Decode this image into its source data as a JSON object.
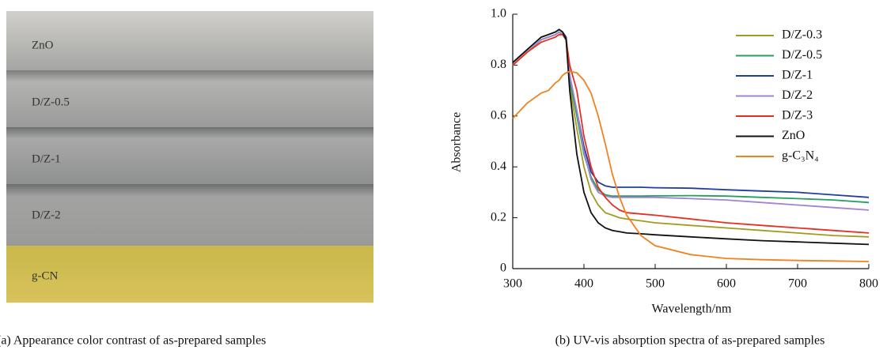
{
  "photo": {
    "labels": [
      "ZnO",
      "D/Z-0.5",
      "D/Z-1",
      "D/Z-2",
      "g-CN"
    ],
    "caption": "(a) Appearance color contrast of as-prepared samples"
  },
  "chart_data": {
    "type": "line",
    "caption": "(b) UV-vis absorption spectra of as-prepared samples",
    "x_label": "Wavelength/nm",
    "y_label": "Absorbance",
    "x": [
      300,
      320,
      340,
      350,
      360,
      365,
      370,
      375,
      380,
      390,
      400,
      410,
      420,
      430,
      440,
      450,
      460,
      480,
      500,
      550,
      600,
      650,
      700,
      750,
      800
    ],
    "series": [
      {
        "name": "D/Z-0.3",
        "color": "#a39b1e",
        "values": [
          0.8,
          0.85,
          0.9,
          0.91,
          0.92,
          0.93,
          0.92,
          0.9,
          0.72,
          0.55,
          0.4,
          0.3,
          0.25,
          0.22,
          0.21,
          0.2,
          0.195,
          0.188,
          0.18,
          0.17,
          0.16,
          0.15,
          0.14,
          0.13,
          0.125
        ]
      },
      {
        "name": "D/Z-0.5",
        "color": "#24a05e",
        "values": [
          0.8,
          0.85,
          0.9,
          0.91,
          0.92,
          0.93,
          0.92,
          0.9,
          0.74,
          0.6,
          0.45,
          0.36,
          0.31,
          0.29,
          0.285,
          0.285,
          0.285,
          0.285,
          0.286,
          0.287,
          0.285,
          0.28,
          0.275,
          0.27,
          0.26
        ]
      },
      {
        "name": "D/Z-1",
        "color": "#1f3f9e",
        "values": [
          0.81,
          0.86,
          0.91,
          0.92,
          0.93,
          0.94,
          0.93,
          0.91,
          0.76,
          0.62,
          0.48,
          0.38,
          0.34,
          0.325,
          0.32,
          0.32,
          0.32,
          0.32,
          0.318,
          0.316,
          0.31,
          0.305,
          0.3,
          0.29,
          0.28
        ]
      },
      {
        "name": "D/Z-2",
        "color": "#a283d2",
        "values": [
          0.8,
          0.85,
          0.9,
          0.91,
          0.92,
          0.93,
          0.92,
          0.9,
          0.76,
          0.62,
          0.46,
          0.35,
          0.3,
          0.285,
          0.28,
          0.28,
          0.28,
          0.28,
          0.28,
          0.275,
          0.27,
          0.26,
          0.25,
          0.24,
          0.23
        ]
      },
      {
        "name": "D/Z-3",
        "color": "#e6301f",
        "values": [
          0.8,
          0.85,
          0.89,
          0.9,
          0.91,
          0.92,
          0.92,
          0.9,
          0.8,
          0.7,
          0.52,
          0.4,
          0.32,
          0.28,
          0.25,
          0.23,
          0.22,
          0.215,
          0.21,
          0.195,
          0.18,
          0.17,
          0.16,
          0.15,
          0.14
        ]
      },
      {
        "name": "ZnO",
        "color": "#111111",
        "values": [
          0.81,
          0.86,
          0.91,
          0.92,
          0.93,
          0.94,
          0.93,
          0.9,
          0.7,
          0.45,
          0.3,
          0.22,
          0.18,
          0.16,
          0.15,
          0.145,
          0.14,
          0.137,
          0.133,
          0.125,
          0.117,
          0.11,
          0.105,
          0.1,
          0.095
        ]
      },
      {
        "name": "g-C₃N₄",
        "color": "#f2821f",
        "values": [
          0.59,
          0.65,
          0.69,
          0.7,
          0.73,
          0.74,
          0.76,
          0.77,
          0.775,
          0.77,
          0.74,
          0.69,
          0.6,
          0.49,
          0.37,
          0.28,
          0.21,
          0.13,
          0.09,
          0.055,
          0.04,
          0.035,
          0.032,
          0.03,
          0.028
        ]
      }
    ],
    "xlim": [
      300,
      800
    ],
    "xticks": [
      300,
      400,
      500,
      600,
      700,
      800
    ],
    "ylim": [
      0,
      1
    ],
    "yticks": [
      0,
      0.2,
      0.4,
      0.6,
      0.8,
      {
        "value": 1,
        "label": "1.0"
      }
    ],
    "legend": "top-right"
  }
}
